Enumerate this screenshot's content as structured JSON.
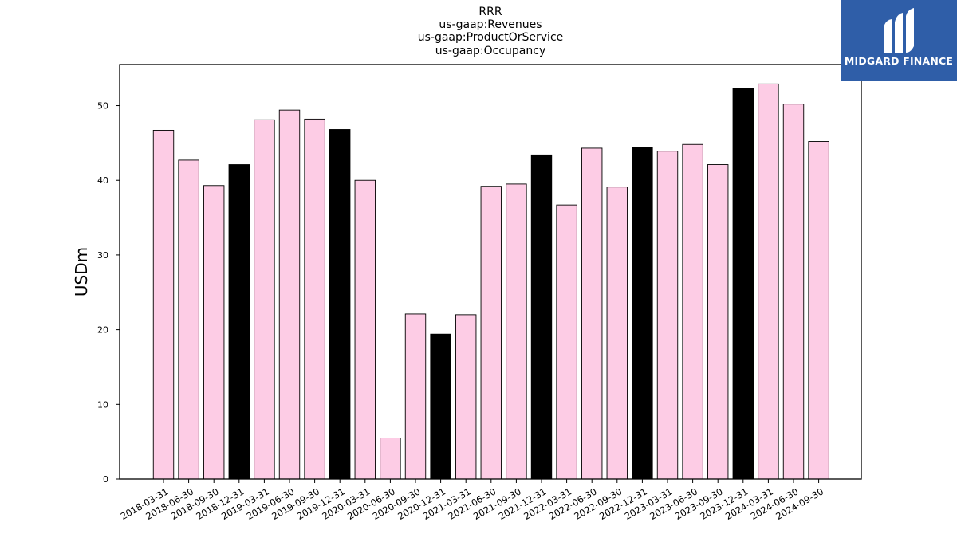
{
  "chart_data": {
    "type": "bar",
    "title_lines": [
      "RRR",
      "us-gaap:Revenues",
      "us-gaap:ProductOrService",
      "us-gaap:Occupancy"
    ],
    "ylabel": "USDm",
    "ylim": [
      0,
      55.5
    ],
    "yticks": [
      0,
      10,
      20,
      30,
      40,
      50
    ],
    "categories": [
      "2018-03-31",
      "2018-06-30",
      "2018-09-30",
      "2018-12-31",
      "2019-03-31",
      "2019-06-30",
      "2019-09-30",
      "2019-12-31",
      "2020-03-31",
      "2020-06-30",
      "2020-09-30",
      "2020-12-31",
      "2021-03-31",
      "2021-06-30",
      "2021-09-30",
      "2021-12-31",
      "2022-03-31",
      "2022-06-30",
      "2022-09-30",
      "2022-12-31",
      "2023-03-31",
      "2023-06-30",
      "2023-09-30",
      "2023-12-31",
      "2024-03-31",
      "2024-06-30",
      "2024-09-30"
    ],
    "values": [
      46.7,
      42.7,
      39.3,
      42.1,
      48.1,
      49.4,
      48.2,
      46.8,
      40.0,
      5.5,
      22.1,
      19.4,
      22.0,
      39.2,
      39.5,
      43.4,
      36.7,
      44.3,
      39.1,
      44.4,
      43.9,
      44.8,
      42.1,
      52.3,
      52.9,
      50.2,
      45.2
    ],
    "colors": {
      "quarter": "#fdcce5",
      "year_end": "#000000",
      "edge": "#000000"
    },
    "grid": false
  },
  "logo": {
    "text": "MIDGARD FINANCE",
    "bg": "#2f5ea8"
  }
}
